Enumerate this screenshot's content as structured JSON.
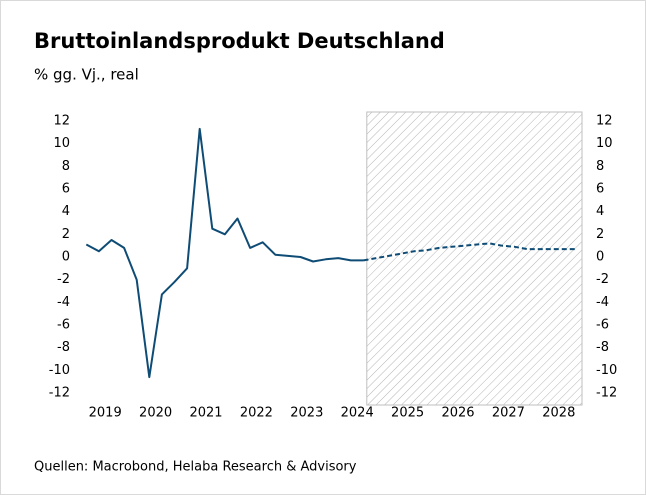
{
  "chart_data": {
    "type": "line",
    "title": "Bruttoinlandsprodukt Deutschland",
    "subtitle": "% gg. Vj., real",
    "source": "Quellen: Macrobond, Helaba Research & Advisory",
    "categories": [
      "2019",
      null,
      null,
      null,
      "2020",
      null,
      null,
      null,
      "2021",
      null,
      null,
      null,
      "2022",
      null,
      null,
      null,
      "2023",
      null,
      null,
      null,
      "2024",
      null,
      null,
      null,
      "2025",
      null,
      null,
      null,
      "2026",
      null,
      null,
      null,
      "2027",
      null,
      null,
      null,
      "2028",
      null,
      null,
      null
    ],
    "values": [
      1.1,
      0.5,
      1.5,
      0.8,
      -2.0,
      -10.6,
      -3.3,
      -2.2,
      -1.0,
      11.3,
      2.5,
      2.0,
      3.4,
      0.8,
      1.3,
      0.2,
      0.1,
      0.0,
      -0.4,
      -0.2,
      -0.1,
      -0.3,
      -0.3,
      -0.1,
      0.1,
      0.3,
      0.5,
      0.6,
      0.8,
      0.9,
      1.0,
      1.1,
      1.2,
      1.0,
      0.9,
      0.7,
      0.7,
      0.7,
      0.7,
      0.7
    ],
    "forecast_start": 23,
    "color": "#0f4c75",
    "ylim": [
      -12,
      12
    ],
    "yticks": [
      -12,
      -10,
      -8,
      -6,
      -4,
      -2,
      0,
      2,
      4,
      6,
      8,
      10,
      12
    ],
    "y2lim": [
      -12,
      12
    ],
    "y2ticks": [
      -12,
      -10,
      -8,
      -6,
      -4,
      -2,
      0,
      2,
      4,
      6,
      8,
      10,
      12
    ]
  }
}
